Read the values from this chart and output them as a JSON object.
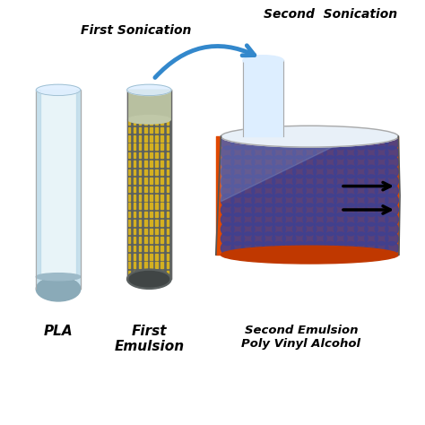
{
  "title_first_sonication": "First Sonication",
  "title_second_sonication": "Second  Sonication",
  "label_pla": "PLA",
  "label_first_emulsion": "First\nEmulsion",
  "label_second_emulsion": "Second Emulsion\nPoly Vinyl Alcohol",
  "tube1_body_light": "#d8eaf2",
  "tube1_body_dark": "#8aaab8",
  "tube1_bottom_color": "#8aaab8",
  "tube2_gray_color": "#5a6060",
  "tube2_yellow_color": "#d4b020",
  "tube2_top_color": "#b8c0a0",
  "beaker_orange_color": "#e04800",
  "beaker_blue_color": "#404090",
  "beaker_top_light": "#e8f0f8",
  "arrow_color": "#3388cc",
  "tube_glow_color": "#e8f4f8"
}
